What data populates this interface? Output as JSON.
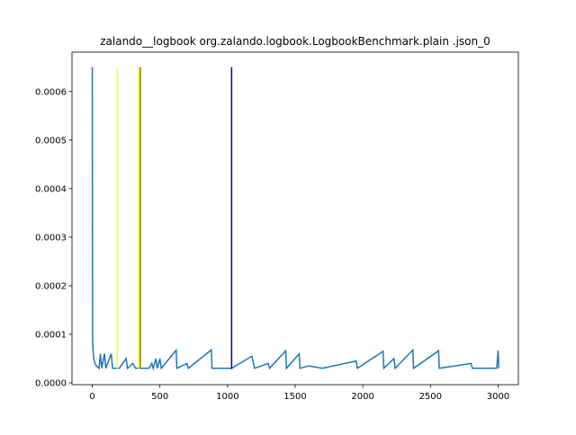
{
  "chart_data": {
    "type": "line",
    "title": "zalando__logbook org.zalando.logbook.LogbookBenchmark.plain .json_0",
    "xlim": [
      -150,
      3150
    ],
    "ylim": [
      -3.7e-06,
      0.000681
    ],
    "xticks": [
      0,
      500,
      1000,
      1500,
      2000,
      2500,
      3000
    ],
    "yticks": [
      {
        "value": 0,
        "label": "0.0000"
      },
      {
        "value": 0.0001,
        "label": "0.0001"
      },
      {
        "value": 0.0002,
        "label": "0.0002"
      },
      {
        "value": 0.0003,
        "label": "0.0003"
      },
      {
        "value": 0.0004,
        "label": "0.0004"
      },
      {
        "value": 0.0005,
        "label": "0.0005"
      },
      {
        "value": 0.0006,
        "label": "0.0006"
      }
    ],
    "series": [
      {
        "color": "#1f77b4",
        "x": [
          0,
          2,
          5,
          10,
          20,
          30,
          50,
          60,
          70,
          90,
          100,
          140,
          150,
          200,
          250,
          260,
          300,
          320,
          420,
          440,
          450,
          470,
          480,
          500,
          510,
          620,
          625,
          700,
          710,
          880,
          885,
          1030,
          1180,
          1200,
          1300,
          1310,
          1430,
          1435,
          1530,
          1535,
          1600,
          1700,
          1950,
          1960,
          2150,
          2155,
          2230,
          2240,
          2370,
          2375,
          2560,
          2565,
          2800,
          2810,
          2990,
          3000,
          3005
        ],
        "values": [
          0.00065,
          9e-05,
          7e-05,
          5e-05,
          4e-05,
          3.5e-05,
          3e-05,
          6e-05,
          3e-05,
          6e-05,
          3e-05,
          6e-05,
          3e-05,
          3e-05,
          5e-05,
          3e-05,
          4e-05,
          3e-05,
          3e-05,
          4e-05,
          3e-05,
          5e-05,
          3e-05,
          5e-05,
          3e-05,
          6.7e-05,
          3e-05,
          4e-05,
          3e-05,
          6.8e-05,
          3e-05,
          3e-05,
          5.5e-05,
          3e-05,
          4e-05,
          3e-05,
          6.6e-05,
          3e-05,
          6e-05,
          3e-05,
          3.5e-05,
          3e-05,
          4.5e-05,
          3e-05,
          6.5e-05,
          3e-05,
          5e-05,
          3e-05,
          6.8e-05,
          3e-05,
          6.6e-05,
          3e-05,
          4e-05,
          3e-05,
          3e-05,
          6.7e-05,
          3e-05
        ]
      },
      {
        "color": "#ffff00",
        "x": [
          185,
          185
        ],
        "values": [
          2.85e-05,
          0.00065
        ]
      },
      {
        "color": "#ffff00",
        "x": [
          345,
          345
        ],
        "values": [
          2.85e-05,
          0.00065
        ]
      },
      {
        "color": "#808000",
        "x": [
          355,
          355
        ],
        "values": [
          2.85e-05,
          0.00065
        ]
      },
      {
        "color": "#0000cc",
        "x": [
          1030,
          1030
        ],
        "values": [
          2.85e-05,
          0.00065
        ]
      }
    ]
  }
}
